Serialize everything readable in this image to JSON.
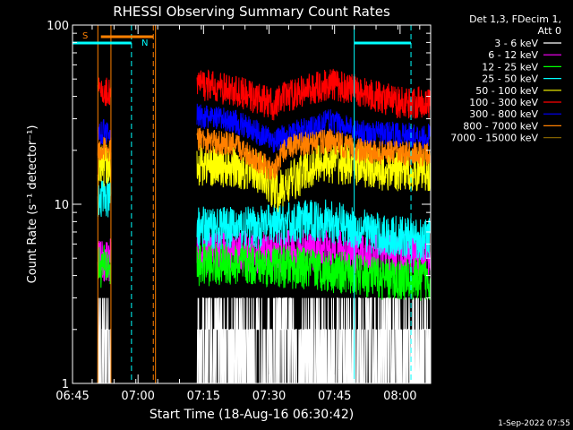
{
  "chart_data": {
    "type": "line",
    "title": "RHESSI Observing Summary Count Rates",
    "xlabel": "Start Time (18-Aug-16 06:30:42)",
    "ylabel": "Count Rate (s⁻¹ detector⁻¹)",
    "y_scale": "log",
    "ylim": [
      1,
      100
    ],
    "y_ticks": [
      {
        "v": 1,
        "label": "1"
      },
      {
        "v": 10,
        "label": "10"
      },
      {
        "v": 100,
        "label": "100"
      }
    ],
    "x_range_min": [
      -2,
      80
    ],
    "x_ticks": [
      {
        "m": 13,
        "label": "06:45"
      },
      {
        "m": 28,
        "label": "07:00"
      },
      {
        "m": 43,
        "label": "07:15"
      },
      {
        "m": 58,
        "label": "07:30"
      },
      {
        "m": 73,
        "label": "07:45"
      },
      {
        "m": 88,
        "label": "08:00"
      }
    ],
    "legend_header": [
      "Det 1,3, FDecim 1,",
      "Att 0"
    ],
    "series": [
      {
        "name": "3 - 6 keV",
        "color": "#ffffff",
        "segments": [
          [
            3.8,
            1.0,
            3.5
          ],
          [
            26.5,
            1.1,
            4.0
          ],
          [
            53.0,
            1.0,
            3.0
          ],
          [
            60.0,
            1.0,
            3.0
          ],
          [
            80.0,
            1.0,
            3.0
          ]
        ]
      },
      {
        "name": "6 - 12 keV",
        "color": "#ff00ff",
        "segments": [
          [
            3.8,
            4.8
          ],
          [
            26.5,
            5.4
          ],
          [
            40.0,
            5.4
          ],
          [
            55.0,
            5.6
          ],
          [
            70.0,
            5.2
          ],
          [
            80.0,
            5.2
          ]
        ]
      },
      {
        "name": "12 - 25 keV",
        "color": "#00ff00",
        "segments": [
          [
            3.8,
            4.5
          ],
          [
            26.5,
            4.6
          ],
          [
            40.0,
            4.6
          ],
          [
            55.0,
            4.3
          ],
          [
            70.0,
            3.8
          ],
          [
            80.0,
            3.8
          ]
        ]
      },
      {
        "name": "25 - 50 keV",
        "color": "#00ffff",
        "segments": [
          [
            3.8,
            11.0
          ],
          [
            26.5,
            7.4
          ],
          [
            40.0,
            7.4
          ],
          [
            55.0,
            8.2
          ],
          [
            70.0,
            6.6
          ],
          [
            80.0,
            6.4
          ]
        ]
      },
      {
        "name": "50 - 100 keV",
        "color": "#ffff00",
        "segments": [
          [
            3.8,
            16.5
          ],
          [
            26.5,
            16.8
          ],
          [
            40.0,
            15.5
          ],
          [
            45.0,
            11.5
          ],
          [
            55.0,
            17.5
          ],
          [
            70.0,
            15.5
          ],
          [
            80.0,
            15.5
          ]
        ]
      },
      {
        "name": "100 - 300 keV",
        "color": "#ff0000",
        "segments": [
          [
            3.8,
            42.0
          ],
          [
            26.5,
            47.0
          ],
          [
            35.0,
            43.0
          ],
          [
            44.0,
            36.0
          ],
          [
            47.0,
            40.0
          ],
          [
            57.0,
            47.0
          ],
          [
            65.0,
            42.0
          ],
          [
            72.0,
            37.0
          ],
          [
            80.0,
            37.0
          ]
        ]
      },
      {
        "name": "300 - 800 keV",
        "color": "#0000ff",
        "segments": [
          [
            3.8,
            25.0
          ],
          [
            26.5,
            31.0
          ],
          [
            35.0,
            29.0
          ],
          [
            44.0,
            22.5
          ],
          [
            57.0,
            29.0
          ],
          [
            65.0,
            25.0
          ],
          [
            80.0,
            24.0
          ]
        ]
      },
      {
        "name": "800 - 7000 keV",
        "color": "#ff8000",
        "segments": [
          [
            3.8,
            20.0
          ],
          [
            26.5,
            23.0
          ],
          [
            35.0,
            21.5
          ],
          [
            44.0,
            15.0
          ],
          [
            47.0,
            21.0
          ],
          [
            57.0,
            22.5
          ],
          [
            65.0,
            19.5
          ],
          [
            80.0,
            19.0
          ]
        ]
      },
      {
        "name": "7000 - 15000 keV",
        "color": "#806000",
        "segments": []
      }
    ],
    "annotations": [
      {
        "label": "S",
        "color": "#ff8000"
      },
      {
        "label": "N",
        "color": "#00ffff"
      }
    ]
  },
  "footer": {
    "timestamp": "1-Sep-2022 07:55"
  }
}
